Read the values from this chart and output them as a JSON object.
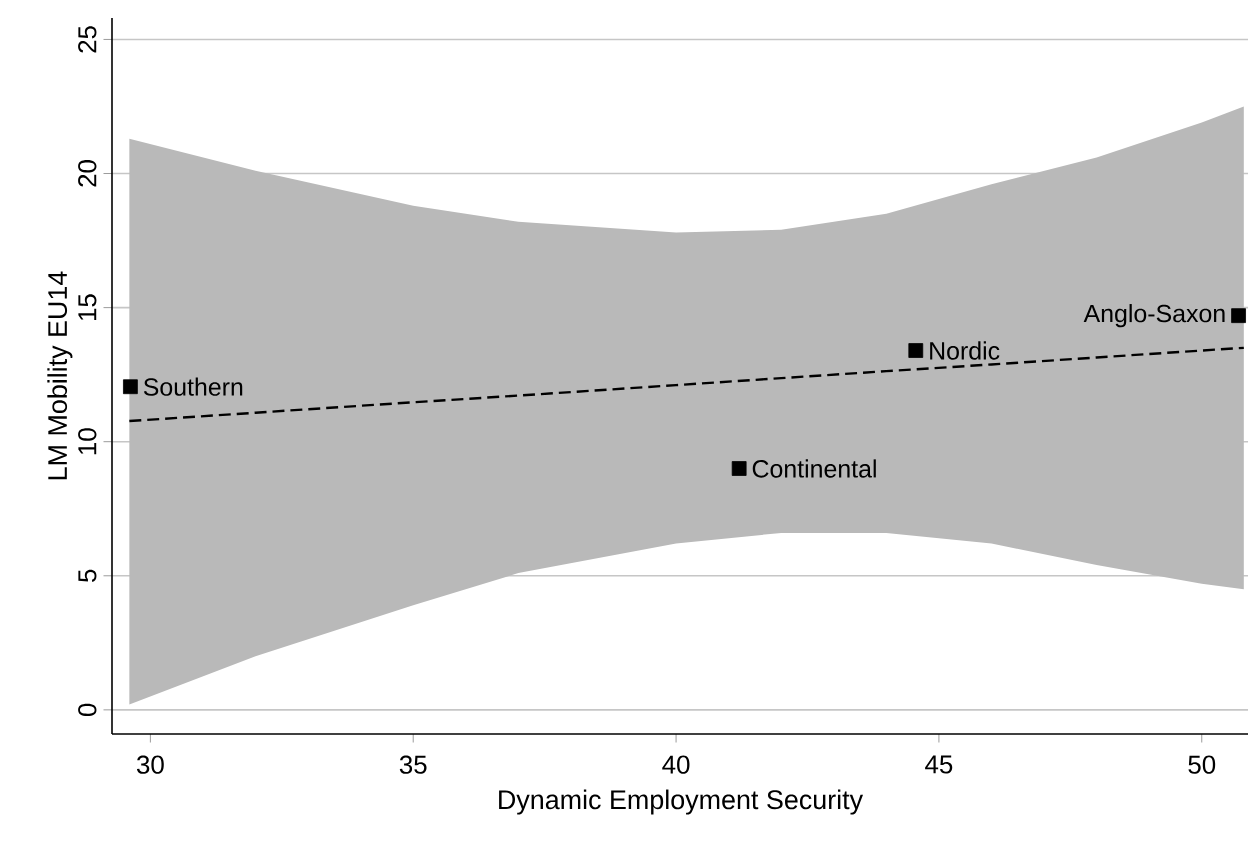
{
  "chart_data": {
    "type": "scatter",
    "xlabel": "Dynamic Employment Security",
    "ylabel": "LM Mobility EU14",
    "xlim": [
      29.27,
      50.88
    ],
    "ylim": [
      -0.9,
      25.8
    ],
    "xticks": [
      30,
      35,
      40,
      45,
      50
    ],
    "yticks": [
      0,
      5,
      10,
      15,
      20,
      25
    ],
    "grid": "y",
    "series": [
      {
        "type": "line",
        "color": "#000000",
        "line_style": "dashed",
        "marker": "none",
        "x": [
          29.6,
          32,
          35,
          37,
          40,
          42,
          44,
          46,
          48,
          50,
          50.8
        ],
        "values": [
          10.77,
          11.08,
          11.47,
          11.72,
          12.11,
          12.37,
          12.63,
          12.88,
          13.14,
          13.4,
          13.5
        ],
        "lower": [
          0.2,
          2.0,
          3.9,
          5.1,
          6.2,
          6.6,
          6.6,
          6.2,
          5.4,
          4.7,
          4.5
        ],
        "upper": [
          21.3,
          20.1,
          18.8,
          18.2,
          17.8,
          17.9,
          18.5,
          19.6,
          20.6,
          21.9,
          22.5
        ]
      },
      {
        "color": "#000000",
        "marker": "square",
        "x": [
          29.62,
          41.2,
          44.56,
          50.7
        ],
        "values": [
          12.05,
          9.0,
          13.4,
          14.7
        ]
      }
    ],
    "annotations": [
      {
        "text": "Southern",
        "x": 29.62,
        "y": 12.05
      },
      {
        "text": "Continental",
        "x": 41.2,
        "y": 9.0
      },
      {
        "text": "Nordic",
        "x": 44.56,
        "y": 13.4
      },
      {
        "text": "Anglo-Saxon",
        "x": 50.7,
        "y": 14.7
      }
    ]
  }
}
